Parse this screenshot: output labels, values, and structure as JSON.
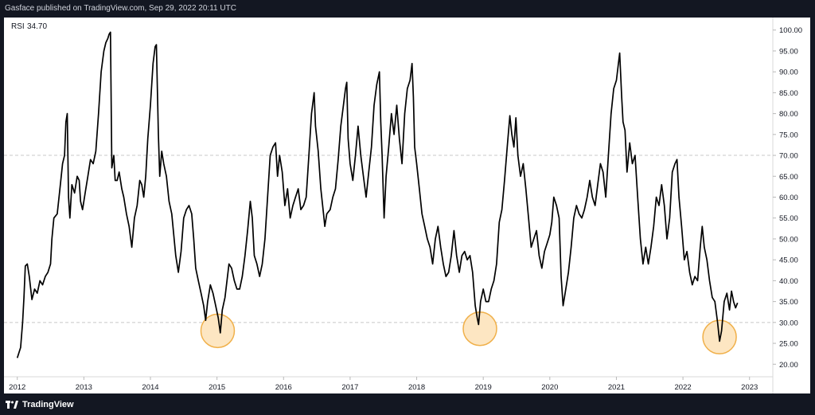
{
  "header": {
    "publisher_text": "Gasface published on TradingView.com, Sep 29, 2022 20:11 UTC"
  },
  "footer": {
    "brand_name": "TradingView",
    "logo_icon": "tradingview-logo-icon"
  },
  "colors": {
    "background": "#131722",
    "panel": "#ffffff",
    "line": "#000000",
    "band": "#c8c8c8",
    "highlight_fill": "#fde6c2",
    "highlight_stroke": "#f0b04a",
    "axis_text": "#131722"
  },
  "chart_data": {
    "type": "line",
    "title": "",
    "indicator_label": "RSI",
    "indicator_value": "34.70",
    "ylim": [
      17,
      103
    ],
    "xlim": [
      2011.8,
      2023.35
    ],
    "y_ticks": [
      "100.00",
      "95.00",
      "90.00",
      "85.00",
      "80.00",
      "75.00",
      "70.00",
      "65.00",
      "60.00",
      "55.00",
      "50.00",
      "45.00",
      "40.00",
      "35.00",
      "30.00",
      "25.00",
      "20.00"
    ],
    "x_ticks": [
      "2012",
      "2013",
      "2014",
      "2015",
      "2016",
      "2017",
      "2018",
      "2019",
      "2020",
      "2021",
      "2022",
      "2023"
    ],
    "reference_lines": [
      70,
      30
    ],
    "grid": false,
    "series": [
      {
        "points": [
          [
            2012.0,
            21.5
          ],
          [
            2012.05,
            24
          ],
          [
            2012.08,
            30
          ],
          [
            2012.1,
            36
          ],
          [
            2012.12,
            43.5
          ],
          [
            2012.15,
            44
          ],
          [
            2012.18,
            41
          ],
          [
            2012.22,
            35.5
          ],
          [
            2012.26,
            38
          ],
          [
            2012.3,
            37
          ],
          [
            2012.34,
            40
          ],
          [
            2012.38,
            39
          ],
          [
            2012.42,
            41
          ],
          [
            2012.46,
            42
          ],
          [
            2012.5,
            44
          ],
          [
            2012.52,
            50
          ],
          [
            2012.55,
            55
          ],
          [
            2012.6,
            56
          ],
          [
            2012.64,
            62
          ],
          [
            2012.68,
            68
          ],
          [
            2012.71,
            70
          ],
          [
            2012.73,
            78
          ],
          [
            2012.75,
            80
          ],
          [
            2012.77,
            60
          ],
          [
            2012.79,
            55
          ],
          [
            2012.82,
            63
          ],
          [
            2012.86,
            61
          ],
          [
            2012.9,
            65
          ],
          [
            2012.93,
            64
          ],
          [
            2012.95,
            59
          ],
          [
            2012.98,
            57
          ],
          [
            2013.02,
            61
          ],
          [
            2013.06,
            65
          ],
          [
            2013.1,
            69
          ],
          [
            2013.14,
            68
          ],
          [
            2013.18,
            71
          ],
          [
            2013.22,
            80
          ],
          [
            2013.26,
            90
          ],
          [
            2013.3,
            95
          ],
          [
            2013.33,
            97
          ],
          [
            2013.36,
            98
          ],
          [
            2013.38,
            99
          ],
          [
            2013.4,
            99.5
          ],
          [
            2013.42,
            67
          ],
          [
            2013.45,
            70
          ],
          [
            2013.47,
            64
          ],
          [
            2013.5,
            64
          ],
          [
            2013.53,
            66
          ],
          [
            2013.57,
            62
          ],
          [
            2013.6,
            60
          ],
          [
            2013.64,
            56
          ],
          [
            2013.68,
            53
          ],
          [
            2013.72,
            48
          ],
          [
            2013.76,
            55
          ],
          [
            2013.8,
            58
          ],
          [
            2013.84,
            64
          ],
          [
            2013.87,
            63
          ],
          [
            2013.9,
            60
          ],
          [
            2013.93,
            65
          ],
          [
            2013.96,
            74
          ],
          [
            2014.0,
            82
          ],
          [
            2014.04,
            92
          ],
          [
            2014.07,
            96
          ],
          [
            2014.09,
            96.5
          ],
          [
            2014.12,
            75
          ],
          [
            2014.14,
            65
          ],
          [
            2014.17,
            71
          ],
          [
            2014.2,
            68
          ],
          [
            2014.24,
            65
          ],
          [
            2014.28,
            59
          ],
          [
            2014.32,
            56
          ],
          [
            2014.35,
            51
          ],
          [
            2014.38,
            46
          ],
          [
            2014.42,
            42
          ],
          [
            2014.46,
            47
          ],
          [
            2014.5,
            55
          ],
          [
            2014.54,
            57
          ],
          [
            2014.58,
            58
          ],
          [
            2014.62,
            56
          ],
          [
            2014.65,
            50
          ],
          [
            2014.68,
            43
          ],
          [
            2014.72,
            40
          ],
          [
            2014.76,
            37
          ],
          [
            2014.8,
            34
          ],
          [
            2014.83,
            30.5
          ],
          [
            2014.86,
            35
          ],
          [
            2014.9,
            39
          ],
          [
            2014.94,
            37
          ],
          [
            2014.98,
            34
          ],
          [
            2015.02,
            31
          ],
          [
            2015.05,
            27.5
          ],
          [
            2015.08,
            33
          ],
          [
            2015.12,
            36
          ],
          [
            2015.15,
            40
          ],
          [
            2015.18,
            44
          ],
          [
            2015.22,
            43
          ],
          [
            2015.26,
            40
          ],
          [
            2015.3,
            38
          ],
          [
            2015.34,
            38
          ],
          [
            2015.38,
            41
          ],
          [
            2015.42,
            46
          ],
          [
            2015.46,
            52
          ],
          [
            2015.5,
            59
          ],
          [
            2015.53,
            55
          ],
          [
            2015.56,
            46
          ],
          [
            2015.6,
            44
          ],
          [
            2015.64,
            41
          ],
          [
            2015.68,
            44
          ],
          [
            2015.72,
            50
          ],
          [
            2015.76,
            60
          ],
          [
            2015.8,
            70
          ],
          [
            2015.84,
            72
          ],
          [
            2015.88,
            73
          ],
          [
            2015.91,
            65
          ],
          [
            2015.94,
            70
          ],
          [
            2015.98,
            66
          ],
          [
            2016.02,
            58
          ],
          [
            2016.06,
            62
          ],
          [
            2016.1,
            55
          ],
          [
            2016.14,
            58
          ],
          [
            2016.18,
            60
          ],
          [
            2016.22,
            62
          ],
          [
            2016.26,
            57
          ],
          [
            2016.3,
            58
          ],
          [
            2016.34,
            60
          ],
          [
            2016.38,
            70
          ],
          [
            2016.42,
            80
          ],
          [
            2016.46,
            85
          ],
          [
            2016.48,
            77
          ],
          [
            2016.52,
            71
          ],
          [
            2016.56,
            62
          ],
          [
            2016.6,
            56
          ],
          [
            2016.62,
            53
          ],
          [
            2016.65,
            56
          ],
          [
            2016.7,
            57
          ],
          [
            2016.74,
            60
          ],
          [
            2016.78,
            62
          ],
          [
            2016.82,
            69
          ],
          [
            2016.86,
            77
          ],
          [
            2016.9,
            82
          ],
          [
            2016.93,
            86
          ],
          [
            2016.95,
            87.5
          ],
          [
            2016.97,
            74
          ],
          [
            2017.0,
            68
          ],
          [
            2017.04,
            64
          ],
          [
            2017.08,
            70
          ],
          [
            2017.12,
            77
          ],
          [
            2017.16,
            70
          ],
          [
            2017.2,
            65
          ],
          [
            2017.24,
            60
          ],
          [
            2017.28,
            66
          ],
          [
            2017.32,
            72
          ],
          [
            2017.36,
            82
          ],
          [
            2017.4,
            87
          ],
          [
            2017.44,
            90
          ],
          [
            2017.46,
            78
          ],
          [
            2017.48,
            70
          ],
          [
            2017.51,
            55
          ],
          [
            2017.54,
            65
          ],
          [
            2017.58,
            72
          ],
          [
            2017.62,
            80
          ],
          [
            2017.66,
            75
          ],
          [
            2017.7,
            82
          ],
          [
            2017.74,
            74
          ],
          [
            2017.78,
            68
          ],
          [
            2017.82,
            80
          ],
          [
            2017.86,
            86
          ],
          [
            2017.9,
            88
          ],
          [
            2017.93,
            92
          ],
          [
            2017.95,
            84
          ],
          [
            2017.97,
            72
          ],
          [
            2018.0,
            68
          ],
          [
            2018.04,
            62
          ],
          [
            2018.08,
            56
          ],
          [
            2018.12,
            53
          ],
          [
            2018.16,
            50
          ],
          [
            2018.2,
            48
          ],
          [
            2018.24,
            44
          ],
          [
            2018.28,
            50
          ],
          [
            2018.32,
            53
          ],
          [
            2018.36,
            48
          ],
          [
            2018.4,
            44
          ],
          [
            2018.44,
            41
          ],
          [
            2018.48,
            42
          ],
          [
            2018.52,
            46
          ],
          [
            2018.56,
            52
          ],
          [
            2018.6,
            46
          ],
          [
            2018.64,
            42
          ],
          [
            2018.68,
            46
          ],
          [
            2018.72,
            47
          ],
          [
            2018.76,
            45
          ],
          [
            2018.8,
            46
          ],
          [
            2018.84,
            42
          ],
          [
            2018.88,
            34
          ],
          [
            2018.91,
            31
          ],
          [
            2018.93,
            29.5
          ],
          [
            2018.96,
            35
          ],
          [
            2019.0,
            38
          ],
          [
            2019.04,
            35
          ],
          [
            2019.08,
            35
          ],
          [
            2019.12,
            38
          ],
          [
            2019.16,
            40
          ],
          [
            2019.2,
            44
          ],
          [
            2019.24,
            54
          ],
          [
            2019.28,
            57
          ],
          [
            2019.32,
            64
          ],
          [
            2019.36,
            72
          ],
          [
            2019.4,
            79.5
          ],
          [
            2019.43,
            75
          ],
          [
            2019.46,
            72
          ],
          [
            2019.49,
            79
          ],
          [
            2019.52,
            70
          ],
          [
            2019.56,
            65
          ],
          [
            2019.6,
            68
          ],
          [
            2019.64,
            62
          ],
          [
            2019.68,
            55
          ],
          [
            2019.72,
            48
          ],
          [
            2019.76,
            50
          ],
          [
            2019.8,
            52
          ],
          [
            2019.84,
            46
          ],
          [
            2019.88,
            43
          ],
          [
            2019.92,
            47
          ],
          [
            2019.96,
            49
          ],
          [
            2020.0,
            51
          ],
          [
            2020.03,
            54
          ],
          [
            2020.06,
            60
          ],
          [
            2020.1,
            58
          ],
          [
            2020.14,
            55
          ],
          [
            2020.17,
            41
          ],
          [
            2020.2,
            34
          ],
          [
            2020.24,
            38
          ],
          [
            2020.28,
            42
          ],
          [
            2020.32,
            48
          ],
          [
            2020.36,
            55
          ],
          [
            2020.4,
            58
          ],
          [
            2020.44,
            56
          ],
          [
            2020.48,
            55
          ],
          [
            2020.52,
            57
          ],
          [
            2020.56,
            60
          ],
          [
            2020.6,
            64
          ],
          [
            2020.64,
            60
          ],
          [
            2020.68,
            58
          ],
          [
            2020.72,
            63
          ],
          [
            2020.76,
            68
          ],
          [
            2020.8,
            66
          ],
          [
            2020.84,
            60
          ],
          [
            2020.88,
            70
          ],
          [
            2020.92,
            80
          ],
          [
            2020.96,
            86
          ],
          [
            2021.0,
            88
          ],
          [
            2021.03,
            92
          ],
          [
            2021.05,
            94.5
          ],
          [
            2021.08,
            84
          ],
          [
            2021.1,
            78
          ],
          [
            2021.13,
            76
          ],
          [
            2021.16,
            66
          ],
          [
            2021.2,
            73
          ],
          [
            2021.24,
            68
          ],
          [
            2021.28,
            70
          ],
          [
            2021.32,
            60
          ],
          [
            2021.36,
            50
          ],
          [
            2021.4,
            44
          ],
          [
            2021.44,
            48
          ],
          [
            2021.48,
            44
          ],
          [
            2021.52,
            48
          ],
          [
            2021.56,
            53
          ],
          [
            2021.6,
            60
          ],
          [
            2021.64,
            58
          ],
          [
            2021.68,
            63
          ],
          [
            2021.72,
            58
          ],
          [
            2021.76,
            50
          ],
          [
            2021.8,
            55
          ],
          [
            2021.84,
            66
          ],
          [
            2021.88,
            68
          ],
          [
            2021.91,
            69
          ],
          [
            2021.94,
            60
          ],
          [
            2021.98,
            53
          ],
          [
            2022.02,
            45
          ],
          [
            2022.06,
            47
          ],
          [
            2022.1,
            42
          ],
          [
            2022.14,
            39
          ],
          [
            2022.18,
            41
          ],
          [
            2022.22,
            40
          ],
          [
            2022.26,
            48
          ],
          [
            2022.29,
            53
          ],
          [
            2022.32,
            48
          ],
          [
            2022.36,
            45
          ],
          [
            2022.4,
            40
          ],
          [
            2022.44,
            36
          ],
          [
            2022.48,
            35
          ],
          [
            2022.52,
            30
          ],
          [
            2022.55,
            25.5
          ],
          [
            2022.58,
            28
          ],
          [
            2022.62,
            35
          ],
          [
            2022.66,
            37
          ],
          [
            2022.7,
            33
          ],
          [
            2022.73,
            37.5
          ],
          [
            2022.76,
            35
          ],
          [
            2022.79,
            33.5
          ],
          [
            2022.82,
            34.7
          ]
        ]
      }
    ],
    "annotations": [
      {
        "type": "circle",
        "x": 2015.01,
        "y": 28.0,
        "label": ""
      },
      {
        "type": "circle",
        "x": 2018.95,
        "y": 28.5,
        "label": ""
      },
      {
        "type": "circle",
        "x": 2022.55,
        "y": 26.5,
        "label": ""
      }
    ]
  }
}
